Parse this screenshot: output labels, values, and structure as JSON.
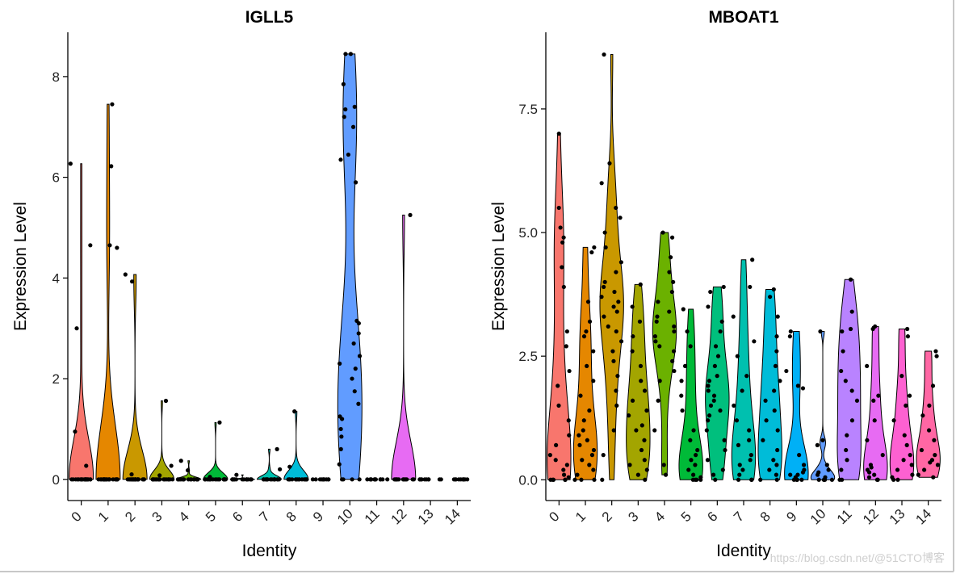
{
  "chart_data": [
    {
      "type": "violin",
      "title": "IGLL5",
      "xlabel": "Identity",
      "ylabel": "Expression Level",
      "categories": [
        "0",
        "1",
        "2",
        "3",
        "4",
        "5",
        "6",
        "7",
        "8",
        "9",
        "10",
        "11",
        "12",
        "13",
        "14"
      ],
      "colors": [
        "#F8766D",
        "#E58700",
        "#C99800",
        "#A3A500",
        "#6BB100",
        "#00BA38",
        "#00BF7D",
        "#00C0AF",
        "#00BCD8",
        "#00B0F6",
        "#619CFF",
        "#B983FF",
        "#E76BF3",
        "#FD61D1",
        "#FF67A4"
      ],
      "values": [
        [
          6.27,
          4.65,
          3.0,
          0.95,
          0.27,
          0,
          0,
          0,
          0,
          0,
          0,
          0,
          0,
          0,
          0,
          0,
          0,
          0,
          0,
          0,
          0,
          0,
          0,
          0,
          0
        ],
        [
          7.45,
          6.22,
          4.65,
          4.6,
          0,
          0,
          0,
          0,
          0,
          0,
          0,
          0,
          0,
          0,
          0,
          0,
          0,
          0,
          0,
          0,
          0,
          0,
          0,
          0
        ],
        [
          4.07,
          3.93,
          0.1,
          0,
          0,
          0,
          0,
          0,
          0,
          0,
          0,
          0,
          0,
          0,
          0,
          0,
          0,
          0,
          0,
          0,
          0,
          0
        ],
        [
          1.56,
          0.27,
          0.08,
          0,
          0,
          0,
          0,
          0,
          0,
          0,
          0,
          0,
          0,
          0,
          0,
          0,
          0,
          0,
          0,
          0
        ],
        [
          0.37,
          0.18,
          0,
          0,
          0,
          0,
          0,
          0,
          0,
          0,
          0,
          0,
          0,
          0,
          0,
          0,
          0,
          0,
          0
        ],
        [
          1.13,
          0.05,
          0,
          0,
          0,
          0,
          0,
          0,
          0,
          0,
          0,
          0,
          0,
          0,
          0,
          0,
          0,
          0,
          0
        ],
        [
          0.09,
          0,
          0,
          0,
          0,
          0,
          0,
          0,
          0,
          0,
          0,
          0,
          0,
          0,
          0,
          0
        ],
        [
          0.6,
          0.2,
          0,
          0,
          0,
          0,
          0,
          0,
          0,
          0,
          0,
          0,
          0,
          0,
          0,
          0,
          0,
          0
        ],
        [
          1.35,
          0.25,
          0,
          0,
          0,
          0,
          0,
          0,
          0,
          0,
          0,
          0,
          0,
          0,
          0,
          0,
          0
        ],
        [
          0,
          0,
          0,
          0,
          0,
          0,
          0,
          0,
          0,
          0
        ],
        [
          8.45,
          8.45,
          7.85,
          7.4,
          7.35,
          7.2,
          7.0,
          6.45,
          6.35,
          5.9,
          3.15,
          3.1,
          2.9,
          2.7,
          2.45,
          2.3,
          2.2,
          2.0,
          1.75,
          1.5,
          1.25,
          1.2,
          1.0,
          0.85,
          0.6,
          0.3,
          0,
          0,
          0,
          0
        ],
        [
          0,
          0,
          0,
          0,
          0,
          0,
          0,
          0,
          0,
          0,
          0,
          0
        ],
        [
          5.25,
          0,
          0,
          0,
          0,
          0,
          0,
          0,
          0,
          0,
          0,
          0,
          0,
          0
        ],
        [
          0,
          0,
          0,
          0,
          0,
          0,
          0,
          0,
          0,
          0
        ],
        [
          0,
          0,
          0,
          0,
          0,
          0,
          0,
          0,
          0,
          0
        ]
      ],
      "ylim": [
        -0.42,
        8.88
      ],
      "yticks": [
        0,
        2,
        4,
        6,
        8
      ]
    },
    {
      "type": "violin",
      "title": "MBOAT1",
      "xlabel": "Identity",
      "ylabel": "Expression Level",
      "categories": [
        "0",
        "1",
        "2",
        "3",
        "4",
        "5",
        "6",
        "7",
        "8",
        "9",
        "10",
        "11",
        "12",
        "13",
        "14"
      ],
      "colors": [
        "#F8766D",
        "#E58700",
        "#C99800",
        "#A3A500",
        "#6BB100",
        "#00BA38",
        "#00BF7D",
        "#00C0AF",
        "#00BCD8",
        "#00B0F6",
        "#619CFF",
        "#B983FF",
        "#E76BF3",
        "#FD61D1",
        "#FF67A4"
      ],
      "values": [
        [
          7.0,
          5.5,
          5.1,
          4.9,
          4.8,
          4.3,
          3.9,
          3.0,
          2.7,
          2.2,
          1.9,
          1.5,
          1.2,
          0.9,
          0.7,
          0.5,
          0.4,
          0.3,
          0.2,
          0.1,
          0.05,
          0,
          0,
          0,
          0,
          0
        ],
        [
          4.7,
          4.6,
          3.6,
          3.2,
          3.0,
          2.9,
          2.6,
          2.3,
          2.0,
          1.7,
          1.4,
          1.2,
          1.0,
          0.9,
          0.8,
          0.7,
          0.6,
          0.5,
          0.4,
          0.3,
          0.2,
          0.1,
          0,
          0,
          0
        ],
        [
          8.6,
          6.4,
          6.0,
          5.5,
          5.3,
          5.0,
          4.7,
          4.4,
          4.2,
          4.0,
          3.9,
          3.8,
          3.7,
          3.6,
          3.5,
          3.4,
          3.3,
          3.1,
          3.0,
          2.8,
          2.6,
          2.4,
          2.1,
          1.8,
          1.5,
          1.0,
          0.5,
          0
        ],
        [
          3.95,
          3.5,
          3.2,
          2.9,
          2.6,
          2.3,
          2.0,
          1.8,
          1.6,
          1.4,
          1.3,
          1.1,
          1.0,
          0.8,
          0.6,
          0.4,
          0.3,
          0.2,
          0.1,
          0
        ],
        [
          5.0,
          4.9,
          4.5,
          4.2,
          4.0,
          3.8,
          3.6,
          3.4,
          3.3,
          3.2,
          3.1,
          3.0,
          2.9,
          2.8,
          2.7,
          2.6,
          2.4,
          2.2,
          2.0,
          1.6,
          1.0,
          0.3,
          0.1
        ],
        [
          3.45,
          3.0,
          2.7,
          2.3,
          2.0,
          1.7,
          1.4,
          1.0,
          0.8,
          0.6,
          0.5,
          0.4,
          0.3,
          0.2,
          0.1,
          0.05,
          0,
          0,
          0,
          0
        ],
        [
          3.9,
          3.8,
          3.5,
          3.2,
          3.0,
          2.7,
          2.5,
          2.3,
          2.1,
          2.0,
          1.9,
          1.8,
          1.7,
          1.6,
          1.5,
          1.4,
          1.3,
          1.2,
          1.0,
          0.8,
          0.6,
          0.4,
          0.2,
          0.1,
          0
        ],
        [
          4.45,
          3.9,
          3.3,
          2.8,
          2.5,
          2.1,
          1.8,
          1.5,
          1.2,
          1.0,
          0.8,
          0.7,
          0.5,
          0.4,
          0.3,
          0.2,
          0.1,
          0,
          0,
          0
        ],
        [
          3.85,
          3.7,
          3.3,
          2.9,
          2.6,
          2.3,
          2.0,
          1.8,
          1.6,
          1.4,
          1.2,
          1.0,
          0.8,
          0.6,
          0.4,
          0.3,
          0.2,
          0.1,
          0,
          0
        ],
        [
          3.0,
          2.9,
          2.2,
          1.9,
          1.85,
          0.5,
          0.3,
          0.2,
          0.15,
          0.1,
          0.1,
          0.05,
          0,
          0,
          0,
          0
        ],
        [
          3.0,
          0.8,
          0.7,
          0.3,
          0.2,
          0.15,
          0.1,
          0.05,
          0,
          0,
          0,
          0,
          0
        ],
        [
          4.05,
          3.4,
          3.05,
          3.0,
          2.6,
          2.2,
          2.0,
          1.8,
          1.6,
          1.2,
          0.9,
          0.6,
          0.4,
          0.2,
          0,
          0
        ],
        [
          3.1,
          3.05,
          2.3,
          1.7,
          1.6,
          1.2,
          0.8,
          0.5,
          0.3,
          0.25,
          0.2,
          0.15,
          0.1,
          0.05,
          0,
          0
        ],
        [
          3.05,
          2.9,
          2.1,
          1.7,
          1.5,
          1.2,
          0.9,
          0.7,
          0.5,
          0.4,
          0.3,
          0.2,
          0.1,
          0.05,
          0,
          0
        ],
        [
          2.6,
          2.5,
          1.9,
          1.5,
          1.3,
          1.0,
          0.8,
          0.6,
          0.5,
          0.4,
          0.35,
          0.3,
          0.2,
          0.1,
          0.05
        ]
      ],
      "ylim": [
        -0.42,
        9.05
      ],
      "yticks": [
        {
          "value": 0,
          "label": "0.0"
        },
        {
          "value": 2.5,
          "label": "2.5"
        },
        {
          "value": 5,
          "label": "5.0"
        },
        {
          "value": 7.5,
          "label": "7.5"
        }
      ]
    }
  ],
  "watermark": "https://blog.csdn.net/@51CTO博客"
}
